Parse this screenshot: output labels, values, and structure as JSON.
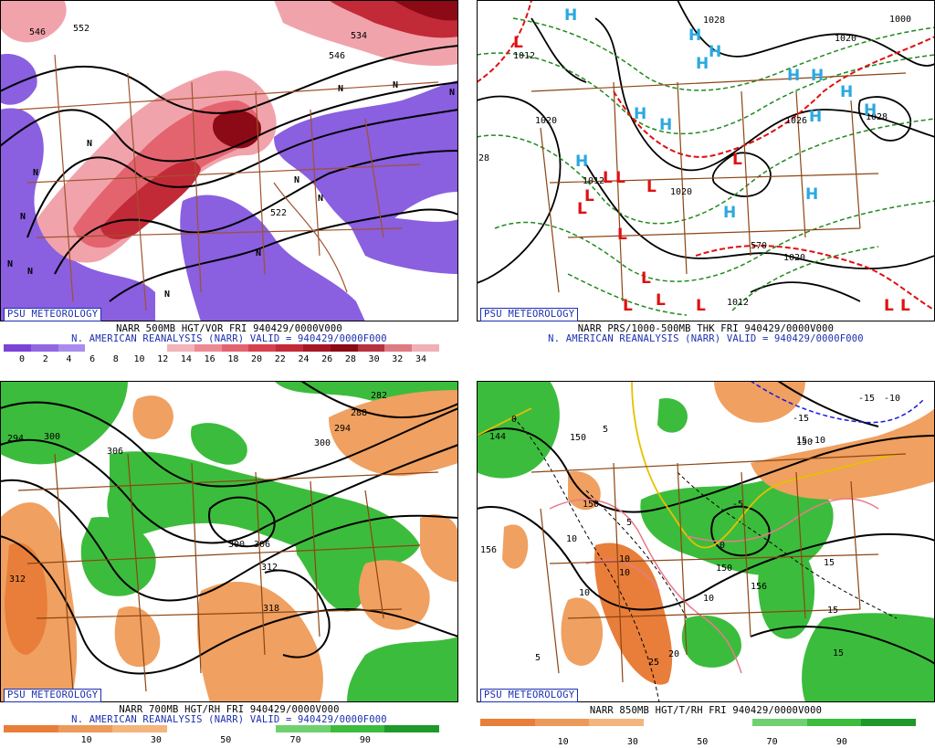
{
  "panels": [
    {
      "id": "p1",
      "psu_label": "PSU METEOROLOGY",
      "title_line1": "NARR 500MB HGT/VOR FRI 940429/0000V000",
      "title_line2": "N. AMERICAN REANALYSIS (NARR) VALID = 940429/0000F000",
      "colorbar": {
        "colors": [
          "#7b43d6",
          "#9268e2",
          "#a98cee",
          "#ffffff",
          "#ffffff",
          "#ffffff",
          "#f3b3ba",
          "#ec8a94",
          "#e36470",
          "#d7404f",
          "#c22a38",
          "#a51723",
          "#8b0a15",
          "#b6323e",
          "#de7a84",
          "#f0b0b6"
        ],
        "ticks": [
          "0",
          "2",
          "4",
          "6",
          "8",
          "10",
          "12",
          "14",
          "16",
          "18",
          "20",
          "22",
          "24",
          "26",
          "28",
          "30",
          "32",
          "34"
        ]
      },
      "contour_labels": [
        "546",
        "552",
        "534",
        "546",
        "522"
      ],
      "markers": [
        "N",
        "N",
        "N",
        "N",
        "N",
        "N",
        "N",
        "N",
        "N",
        "N",
        "N",
        "N"
      ]
    },
    {
      "id": "p2",
      "psu_label": "PSU METEOROLOGY",
      "title_line1": "NARR PRS/1000-500MB THK FRI 940429/0000V000",
      "title_line2": "N. AMERICAN REANALYSIS (NARR) VALID = 940429/0000F000",
      "contour_labels": [
        "1028",
        "1012",
        "1020",
        "1012",
        "1020",
        "1020",
        "1012",
        "1028",
        "1020",
        "1000",
        "570",
        "28",
        "1026"
      ],
      "highs": [
        "H",
        "H",
        "H",
        "H",
        "H",
        "H",
        "H",
        "H",
        "H",
        "H",
        "H",
        "H",
        "H",
        "H"
      ],
      "lows": [
        "L",
        "L",
        "L",
        "L",
        "L",
        "L",
        "L",
        "L",
        "L",
        "L",
        "L",
        "L",
        "L",
        "L"
      ]
    },
    {
      "id": "p3",
      "psu_label": "PSU METEOROLOGY",
      "title_line1": "NARR 700MB HGT/RH FRI 940429/0000V000",
      "title_line2": "N. AMERICAN REANALYSIS (NARR) VALID = 940429/0000F000",
      "colorbar": {
        "colors": [
          "#e87e3a",
          "#ec9a5a",
          "#f3b57c",
          "#ffffff",
          "#ffffff",
          "#6fd070",
          "#3cbc3c",
          "#1e9a2a"
        ],
        "ticks": [
          "10",
          "30",
          "50",
          "70",
          "90"
        ]
      },
      "contour_labels": [
        "294",
        "300",
        "306",
        "282",
        "288",
        "294",
        "300",
        "312",
        "300",
        "306",
        "312",
        "318"
      ]
    },
    {
      "id": "p4",
      "psu_label": "PSU METEOROLOGY",
      "title_line1": "NARR 850MB HGT/T/RH FRI 940429/0000V000",
      "title_line2": "",
      "colorbar": {
        "colors": [
          "#e87e3a",
          "#ec9a5a",
          "#f3b57c",
          "#ffffff",
          "#ffffff",
          "#6fd070",
          "#3cbc3c",
          "#1e9a2a"
        ],
        "ticks": [
          "10",
          "30",
          "50",
          "70",
          "90"
        ]
      },
      "contour_labels": [
        "144",
        "150",
        "156",
        "150",
        "150",
        "156",
        "150"
      ],
      "temp_labels": [
        "0",
        "5",
        "5",
        "-5",
        "0",
        "10",
        "10",
        "10",
        "10",
        "10",
        "15",
        "15",
        "15",
        "25",
        "20",
        "5",
        "-15",
        "-10",
        "15",
        "-15",
        "-10"
      ]
    }
  ]
}
